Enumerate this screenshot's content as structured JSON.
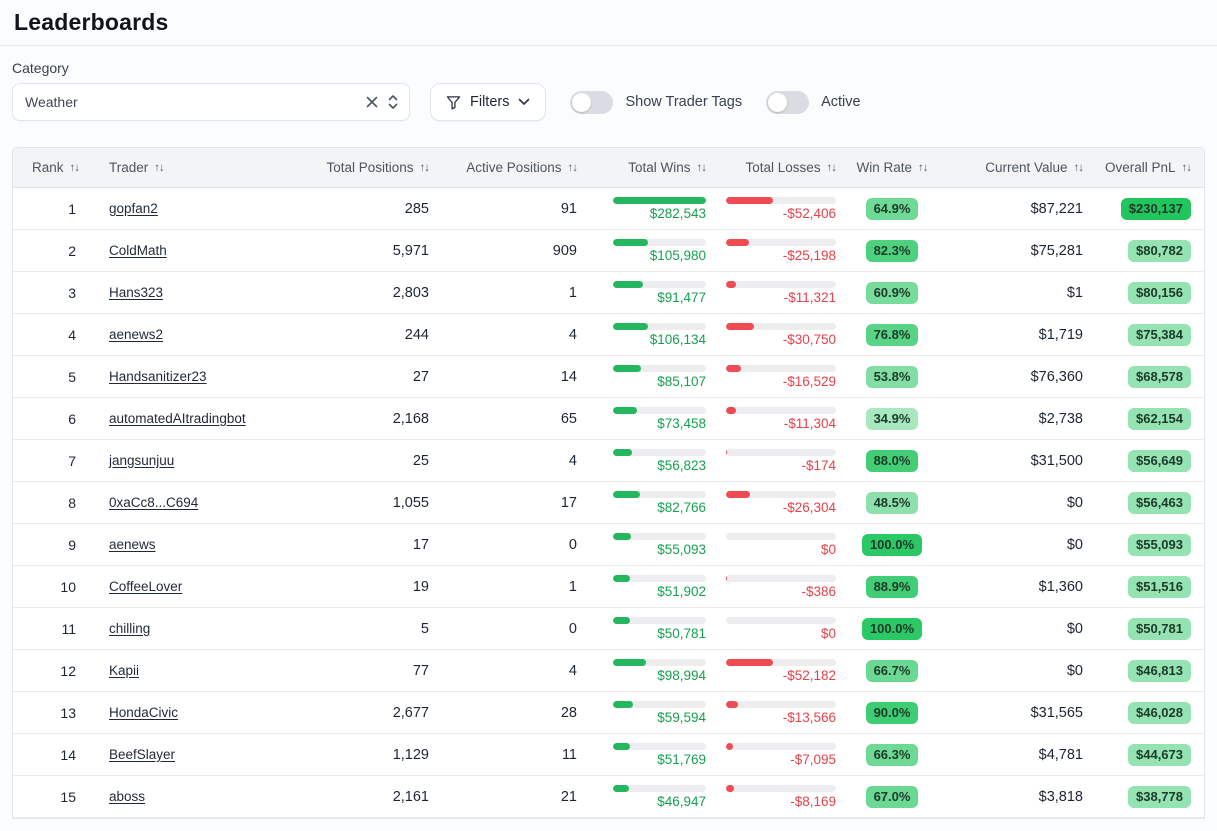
{
  "page": {
    "title": "Leaderboards"
  },
  "controls": {
    "category_label": "Category",
    "category_value": "Weather",
    "filters_label": "Filters",
    "toggles": [
      {
        "label": "Show Trader Tags",
        "on": false
      },
      {
        "label": "Active",
        "on": false
      }
    ]
  },
  "icons": {
    "sort": "↑↓"
  },
  "colors": {
    "green_base": "34,197,94",
    "green_fill": "#24b760",
    "red_fill": "#ee4b52",
    "green_text": "#17a050",
    "red_text": "#e5424a"
  },
  "table": {
    "columns": [
      "Rank",
      "Trader",
      "Total Positions",
      "Active Positions",
      "Total Wins",
      "Total Losses",
      "Win Rate",
      "Current Value",
      "Overall PnL"
    ],
    "rows": [
      {
        "rank": "1",
        "trader": "gopfan2",
        "total_positions": "285",
        "active_positions": "91",
        "total_wins": "$282,543",
        "win_bar_pct": 100,
        "total_losses": "-$52,406",
        "loss_bar_pct": 43,
        "win_rate": "64.9%",
        "win_rate_alpha": 0.65,
        "current_value": "$87,221",
        "overall_pnl": "$230,137",
        "pnl_alpha": 1
      },
      {
        "rank": "2",
        "trader": "ColdMath",
        "total_positions": "5,971",
        "active_positions": "909",
        "total_wins": "$105,980",
        "win_bar_pct": 38,
        "total_losses": "-$25,198",
        "loss_bar_pct": 21,
        "win_rate": "82.3%",
        "win_rate_alpha": 0.8,
        "current_value": "$75,281",
        "overall_pnl": "$80,782",
        "pnl_alpha": 0.48
      },
      {
        "rank": "3",
        "trader": "Hans323",
        "total_positions": "2,803",
        "active_positions": "1",
        "total_wins": "$91,477",
        "win_bar_pct": 32,
        "total_losses": "-$11,321",
        "loss_bar_pct": 9,
        "win_rate": "60.9%",
        "win_rate_alpha": 0.62,
        "current_value": "$1",
        "overall_pnl": "$80,156",
        "pnl_alpha": 0.48
      },
      {
        "rank": "4",
        "trader": "aenews2",
        "total_positions": "244",
        "active_positions": "4",
        "total_wins": "$106,134",
        "win_bar_pct": 38,
        "total_losses": "-$30,750",
        "loss_bar_pct": 25,
        "win_rate": "76.8%",
        "win_rate_alpha": 0.75,
        "current_value": "$1,719",
        "overall_pnl": "$75,384",
        "pnl_alpha": 0.48
      },
      {
        "rank": "5",
        "trader": "Handsanitizer23",
        "total_positions": "27",
        "active_positions": "14",
        "total_wins": "$85,107",
        "win_bar_pct": 30,
        "total_losses": "-$16,529",
        "loss_bar_pct": 14,
        "win_rate": "53.8%",
        "win_rate_alpha": 0.56,
        "current_value": "$76,360",
        "overall_pnl": "$68,578",
        "pnl_alpha": 0.48
      },
      {
        "rank": "6",
        "trader": "automatedAItradingbot",
        "total_positions": "2,168",
        "active_positions": "65",
        "total_wins": "$73,458",
        "win_bar_pct": 26,
        "total_losses": "-$11,304",
        "loss_bar_pct": 9,
        "win_rate": "34.9%",
        "win_rate_alpha": 0.4,
        "current_value": "$2,738",
        "overall_pnl": "$62,154",
        "pnl_alpha": 0.48
      },
      {
        "rank": "7",
        "trader": "jangsunjuu",
        "total_positions": "25",
        "active_positions": "4",
        "total_wins": "$56,823",
        "win_bar_pct": 20,
        "total_losses": "-$174",
        "loss_bar_pct": 1,
        "win_rate": "88.0%",
        "win_rate_alpha": 0.85,
        "current_value": "$31,500",
        "overall_pnl": "$56,649",
        "pnl_alpha": 0.48
      },
      {
        "rank": "8",
        "trader": "0xaCc8...C694",
        "total_positions": "1,055",
        "active_positions": "17",
        "total_wins": "$82,766",
        "win_bar_pct": 29,
        "total_losses": "-$26,304",
        "loss_bar_pct": 22,
        "win_rate": "48.5%",
        "win_rate_alpha": 0.51,
        "current_value": "$0",
        "overall_pnl": "$56,463",
        "pnl_alpha": 0.48
      },
      {
        "rank": "9",
        "trader": "aenews",
        "total_positions": "17",
        "active_positions": "0",
        "total_wins": "$55,093",
        "win_bar_pct": 19,
        "total_losses": "$0",
        "loss_bar_pct": 0,
        "win_rate": "100.0%",
        "win_rate_alpha": 0.95,
        "current_value": "$0",
        "overall_pnl": "$55,093",
        "pnl_alpha": 0.48
      },
      {
        "rank": "10",
        "trader": "CoffeeLover",
        "total_positions": "19",
        "active_positions": "1",
        "total_wins": "$51,902",
        "win_bar_pct": 18,
        "total_losses": "-$386",
        "loss_bar_pct": 1,
        "win_rate": "88.9%",
        "win_rate_alpha": 0.86,
        "current_value": "$1,360",
        "overall_pnl": "$51,516",
        "pnl_alpha": 0.48
      },
      {
        "rank": "11",
        "trader": "chilling",
        "total_positions": "5",
        "active_positions": "0",
        "total_wins": "$50,781",
        "win_bar_pct": 18,
        "total_losses": "$0",
        "loss_bar_pct": 0,
        "win_rate": "100.0%",
        "win_rate_alpha": 0.95,
        "current_value": "$0",
        "overall_pnl": "$50,781",
        "pnl_alpha": 0.48
      },
      {
        "rank": "12",
        "trader": "Kapii",
        "total_positions": "77",
        "active_positions": "4",
        "total_wins": "$98,994",
        "win_bar_pct": 35,
        "total_losses": "-$52,182",
        "loss_bar_pct": 43,
        "win_rate": "66.7%",
        "win_rate_alpha": 0.67,
        "current_value": "$0",
        "overall_pnl": "$46,813",
        "pnl_alpha": 0.48
      },
      {
        "rank": "13",
        "trader": "HondaCivic",
        "total_positions": "2,677",
        "active_positions": "28",
        "total_wins": "$59,594",
        "win_bar_pct": 21,
        "total_losses": "-$13,566",
        "loss_bar_pct": 11,
        "win_rate": "90.0%",
        "win_rate_alpha": 0.87,
        "current_value": "$31,565",
        "overall_pnl": "$46,028",
        "pnl_alpha": 0.48
      },
      {
        "rank": "14",
        "trader": "BeefSlayer",
        "total_positions": "1,129",
        "active_positions": "11",
        "total_wins": "$51,769",
        "win_bar_pct": 18,
        "total_losses": "-$7,095",
        "loss_bar_pct": 6,
        "win_rate": "66.3%",
        "win_rate_alpha": 0.66,
        "current_value": "$4,781",
        "overall_pnl": "$44,673",
        "pnl_alpha": 0.48
      },
      {
        "rank": "15",
        "trader": "aboss",
        "total_positions": "2,161",
        "active_positions": "21",
        "total_wins": "$46,947",
        "win_bar_pct": 17,
        "total_losses": "-$8,169",
        "loss_bar_pct": 7,
        "win_rate": "67.0%",
        "win_rate_alpha": 0.67,
        "current_value": "$3,818",
        "overall_pnl": "$38,778",
        "pnl_alpha": 0.48
      }
    ]
  }
}
